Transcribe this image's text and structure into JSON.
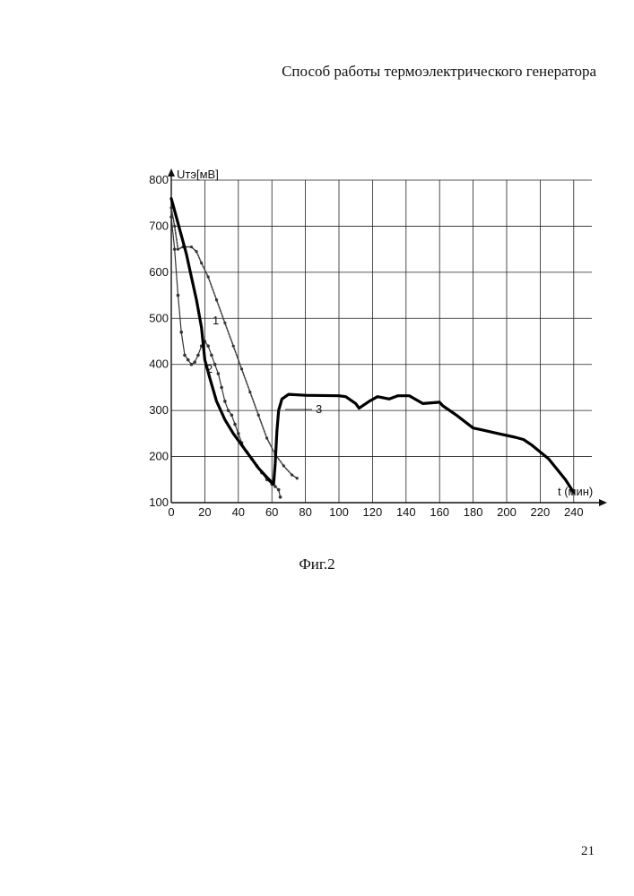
{
  "page": {
    "header": "Способ работы термоэлектрического генератора",
    "caption": "Фиг.2",
    "page_number": "21"
  },
  "chart_data": {
    "type": "line",
    "ylabel": "Uтэ[мВ]",
    "xlabel": "t (мин)",
    "xlim": [
      0,
      250
    ],
    "ylim": [
      100,
      800
    ],
    "x_ticks": [
      0,
      20,
      40,
      60,
      80,
      100,
      120,
      140,
      160,
      180,
      200,
      220,
      240
    ],
    "y_ticks": [
      100,
      200,
      300,
      400,
      500,
      600,
      700,
      800
    ],
    "grid": true,
    "series": [
      {
        "name": "1",
        "style": "dotted-marker",
        "points": [
          [
            0,
            740
          ],
          [
            2,
            700
          ],
          [
            4,
            650
          ],
          [
            7,
            655
          ],
          [
            12,
            655
          ],
          [
            15,
            645
          ],
          [
            18,
            620
          ],
          [
            22,
            590
          ],
          [
            27,
            540
          ],
          [
            32,
            490
          ],
          [
            37,
            440
          ],
          [
            42,
            390
          ],
          [
            47,
            340
          ],
          [
            52,
            290
          ],
          [
            57,
            240
          ],
          [
            62,
            205
          ],
          [
            67,
            180
          ],
          [
            72,
            160
          ],
          [
            75,
            153
          ]
        ]
      },
      {
        "name": "2",
        "style": "marker-noisy",
        "points": [
          [
            0,
            720
          ],
          [
            2,
            650
          ],
          [
            4,
            550
          ],
          [
            6,
            470
          ],
          [
            8,
            420
          ],
          [
            10,
            410
          ],
          [
            12,
            400
          ],
          [
            14,
            405
          ],
          [
            16,
            420
          ],
          [
            18,
            440
          ],
          [
            20,
            450
          ],
          [
            22,
            440
          ],
          [
            24,
            420
          ],
          [
            26,
            400
          ],
          [
            28,
            380
          ],
          [
            30,
            350
          ],
          [
            32,
            320
          ],
          [
            34,
            300
          ],
          [
            36,
            290
          ],
          [
            38,
            270
          ],
          [
            40,
            250
          ],
          [
            42,
            230
          ],
          [
            45,
            210
          ],
          [
            48,
            195
          ],
          [
            51,
            180
          ],
          [
            54,
            165
          ],
          [
            57,
            150
          ],
          [
            60,
            140
          ],
          [
            62,
            135
          ],
          [
            64,
            128
          ],
          [
            65,
            112
          ]
        ]
      },
      {
        "name": "3",
        "style": "bold",
        "points": [
          [
            0,
            760
          ],
          [
            3,
            720
          ],
          [
            6,
            680
          ],
          [
            9,
            640
          ],
          [
            12,
            590
          ],
          [
            15,
            540
          ],
          [
            18,
            480
          ],
          [
            20,
            410
          ],
          [
            23,
            370
          ],
          [
            27,
            320
          ],
          [
            32,
            280
          ],
          [
            37,
            250
          ],
          [
            42,
            225
          ],
          [
            47,
            200
          ],
          [
            52,
            175
          ],
          [
            57,
            155
          ],
          [
            61,
            140
          ],
          [
            62,
            185
          ],
          [
            63,
            255
          ],
          [
            64,
            300
          ],
          [
            66,
            325
          ],
          [
            70,
            335
          ],
          [
            80,
            333
          ],
          [
            100,
            332
          ],
          [
            104,
            330
          ],
          [
            110,
            315
          ],
          [
            112,
            305
          ],
          [
            118,
            320
          ],
          [
            123,
            330
          ],
          [
            130,
            325
          ],
          [
            135,
            332
          ],
          [
            142,
            332
          ],
          [
            150,
            315
          ],
          [
            160,
            318
          ],
          [
            162,
            310
          ],
          [
            170,
            290
          ],
          [
            180,
            262
          ],
          [
            185,
            258
          ],
          [
            195,
            250
          ],
          [
            205,
            242
          ],
          [
            210,
            237
          ],
          [
            215,
            225
          ],
          [
            225,
            195
          ],
          [
            235,
            150
          ],
          [
            240,
            122
          ]
        ]
      }
    ],
    "annotations": [
      "1",
      "2",
      "3"
    ]
  }
}
